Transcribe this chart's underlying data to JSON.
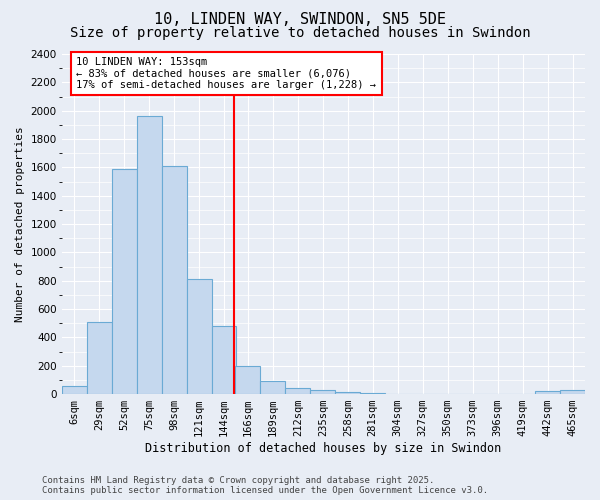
{
  "title": "10, LINDEN WAY, SWINDON, SN5 5DE",
  "subtitle": "Size of property relative to detached houses in Swindon",
  "xlabel": "Distribution of detached houses by size in Swindon",
  "ylabel": "Number of detached properties",
  "footer_line1": "Contains HM Land Registry data © Crown copyright and database right 2025.",
  "footer_line2": "Contains public sector information licensed under the Open Government Licence v3.0.",
  "categories": [
    "6sqm",
    "29sqm",
    "52sqm",
    "75sqm",
    "98sqm",
    "121sqm",
    "144sqm",
    "166sqm",
    "189sqm",
    "212sqm",
    "235sqm",
    "258sqm",
    "281sqm",
    "304sqm",
    "327sqm",
    "350sqm",
    "373sqm",
    "396sqm",
    "419sqm",
    "442sqm",
    "465sqm"
  ],
  "values": [
    60,
    510,
    1590,
    1960,
    1610,
    810,
    480,
    200,
    95,
    45,
    30,
    15,
    10,
    0,
    0,
    0,
    0,
    0,
    0,
    20,
    30
  ],
  "bar_color": "#c5d8ee",
  "bar_edge_color": "#6aaad4",
  "annotation_text": "10 LINDEN WAY: 153sqm\n← 83% of detached houses are smaller (6,076)\n17% of semi-detached houses are larger (1,228) →",
  "annotation_box_color": "white",
  "annotation_box_edge_color": "red",
  "vline_x": 153,
  "vline_color": "red",
  "ylim": [
    0,
    2400
  ],
  "yticks": [
    0,
    200,
    400,
    600,
    800,
    1000,
    1200,
    1400,
    1600,
    1800,
    2000,
    2200,
    2400
  ],
  "bg_color": "#e8edf5",
  "plot_bg_color": "#e8edf5",
  "grid_color": "#ffffff",
  "title_fontsize": 11,
  "subtitle_fontsize": 10,
  "xlabel_fontsize": 8.5,
  "ylabel_fontsize": 8,
  "tick_fontsize": 7.5,
  "annotation_fontsize": 7.5,
  "footer_fontsize": 6.5
}
